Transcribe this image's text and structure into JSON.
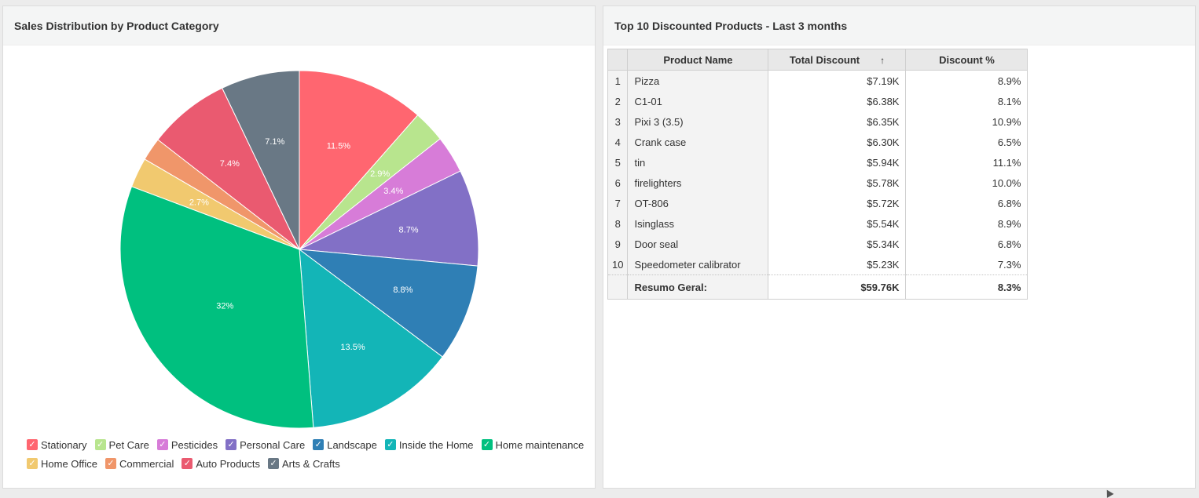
{
  "left_panel": {
    "title": "Sales Distribution by Product Category"
  },
  "chart_data": {
    "type": "pie",
    "title": "Sales Distribution by Product Category",
    "legend_position": "bottom",
    "slices": [
      {
        "name": "Stationary",
        "value": 11.5,
        "label": "11.5%",
        "color": "#ff6670"
      },
      {
        "name": "Pet Care",
        "value": 2.9,
        "label": "2.9%",
        "color": "#b8e58e"
      },
      {
        "name": "Pesticides",
        "value": 3.4,
        "label": "3.4%",
        "color": "#d77cd8"
      },
      {
        "name": "Personal Care",
        "value": 8.7,
        "label": "8.7%",
        "color": "#8270c6"
      },
      {
        "name": "Landscape",
        "value": 8.8,
        "label": "8.8%",
        "color": "#2f7fb5"
      },
      {
        "name": "Inside the Home",
        "value": 13.5,
        "label": "13.5%",
        "color": "#13b5b7"
      },
      {
        "name": "Home maintenance",
        "value": 32,
        "label": "32%",
        "color": "#00c07f"
      },
      {
        "name": "Home Office",
        "value": 2.7,
        "label": "2.7%",
        "color": "#f1c96f"
      },
      {
        "name": "Commercial",
        "value": 2.1,
        "label": "",
        "color": "#f0966a"
      },
      {
        "name": "Auto Products",
        "value": 7.4,
        "label": "7.4%",
        "color": "#ea5a70"
      },
      {
        "name": "Arts & Crafts",
        "value": 7.1,
        "label": "7.1%",
        "color": "#697885"
      }
    ]
  },
  "legend": {
    "check_glyph": "✓",
    "items": [
      "Stationary",
      "Pet Care",
      "Pesticides",
      "Personal Care",
      "Landscape",
      "Inside the Home",
      "Home maintenance",
      "Home Office",
      "Commercial",
      "Auto Products",
      "Arts & Crafts"
    ]
  },
  "right_panel": {
    "title": "Top 10 Discounted Products - Last 3 months",
    "table": {
      "columns": [
        "Product Name",
        "Total Discount",
        "Discount %"
      ],
      "sort_icon": "arrow-up-icon",
      "sort_glyph": "↑",
      "rows": [
        {
          "index": "1",
          "name": "Pizza",
          "total": "$7.19K",
          "pct": "8.9%"
        },
        {
          "index": "2",
          "name": "C1-01",
          "total": "$6.38K",
          "pct": "8.1%"
        },
        {
          "index": "3",
          "name": "Pixi 3 (3.5)",
          "total": "$6.35K",
          "pct": "10.9%"
        },
        {
          "index": "4",
          "name": "Crank case",
          "total": "$6.30K",
          "pct": "6.5%"
        },
        {
          "index": "5",
          "name": "tin",
          "total": "$5.94K",
          "pct": "11.1%"
        },
        {
          "index": "6",
          "name": "firelighters",
          "total": "$5.78K",
          "pct": "10.0%"
        },
        {
          "index": "7",
          "name": "OT-806",
          "total": "$5.72K",
          "pct": "6.8%"
        },
        {
          "index": "8",
          "name": "Isinglass",
          "total": "$5.54K",
          "pct": "8.9%"
        },
        {
          "index": "9",
          "name": "Door seal",
          "total": "$5.34K",
          "pct": "6.8%"
        },
        {
          "index": "10",
          "name": "Speedometer calibrator",
          "total": "$5.23K",
          "pct": "7.3%"
        }
      ],
      "summary": {
        "label": "Resumo Geral:",
        "total": "$59.76K",
        "pct": "8.3%"
      }
    }
  }
}
